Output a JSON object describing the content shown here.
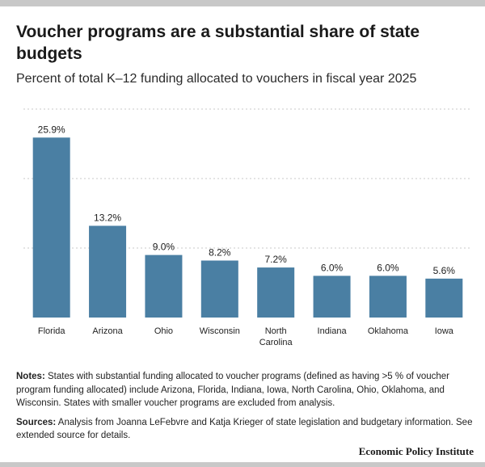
{
  "title": "Voucher programs are a substantial share of state budgets",
  "subtitle": "Percent of total K–12 funding allocated to vouchers in fiscal year 2025",
  "chart_data": {
    "type": "bar",
    "categories": [
      "Florida",
      "Arizona",
      "Ohio",
      "Wisconsin",
      "North Carolina",
      "Indiana",
      "Oklahoma",
      "Iowa"
    ],
    "values": [
      25.9,
      13.2,
      9.0,
      8.2,
      7.2,
      6.0,
      6.0,
      5.6
    ],
    "value_labels": [
      "25.9%",
      "13.2%",
      "9.0%",
      "8.2%",
      "7.2%",
      "6.0%",
      "6.0%",
      "5.6%"
    ],
    "ylim": [
      0,
      30
    ],
    "grid": true,
    "bar_color": "#4a7fa3"
  },
  "notes": {
    "label": "Notes:",
    "text": "States with substantial funding allocated to voucher programs (defined as having >5 % of voucher program funding allocated) include Arizona, Florida, Indiana, Iowa, North Carolina, Ohio, Oklahoma, and Wisconsin. States with smaller voucher programs are excluded from analysis."
  },
  "sources": {
    "label": "Sources:",
    "text": "Analysis from Joanna LeFebvre and Katja Krieger of state legislation and budgetary information. See extended source for details."
  },
  "credit": "Economic Policy Institute"
}
